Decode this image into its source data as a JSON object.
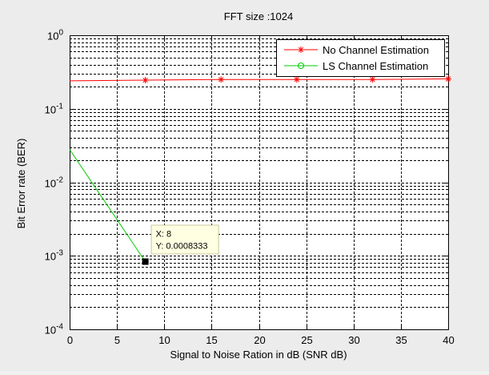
{
  "chart_data": {
    "type": "line",
    "title": "FFT size :1024",
    "xlabel": "Signal to Noise Ration in dB (SNR dB)",
    "ylabel": "Bit Error rate (BER)",
    "xlim": [
      0,
      40
    ],
    "ylim": [
      0.0001,
      1
    ],
    "yscale": "log",
    "grid": true,
    "legend_position": "top-right",
    "x_ticks": [
      "0",
      "5",
      "10",
      "15",
      "20",
      "25",
      "30",
      "35",
      "40"
    ],
    "y_ticks": [
      {
        "base": "10",
        "exp": "-4"
      },
      {
        "base": "10",
        "exp": "-3"
      },
      {
        "base": "10",
        "exp": "-2"
      },
      {
        "base": "10",
        "exp": "-1"
      },
      {
        "base": "10",
        "exp": "0"
      }
    ],
    "series": [
      {
        "name": "No Channel Estimation",
        "color": "#ff0000",
        "marker": "asterisk",
        "x": [
          0,
          8,
          16,
          24,
          32,
          40
        ],
        "y": [
          0.24,
          0.245,
          0.25,
          0.25,
          0.25,
          0.255
        ]
      },
      {
        "name": "LS Channel Estimation",
        "color": "#00cc00",
        "marker": "circle",
        "x": [
          0,
          8
        ],
        "y": [
          0.028,
          0.0008333
        ]
      }
    ],
    "datatip": {
      "x_text": "X: 8",
      "y_text": "Y: 0.0008333",
      "x": 8,
      "y": 0.0008333
    }
  }
}
